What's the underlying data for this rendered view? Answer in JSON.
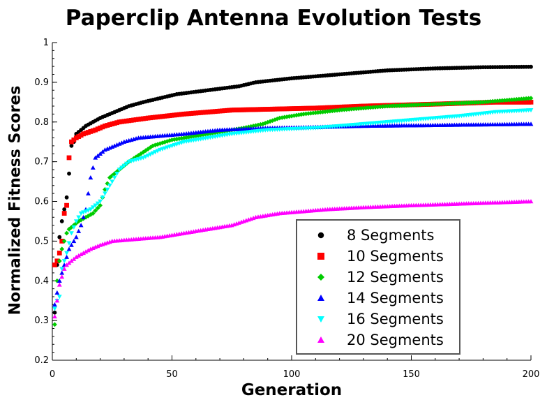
{
  "chart_data": {
    "type": "scatter",
    "title": "Paperclip Antenna Evolution Tests",
    "xlabel": "Generation",
    "ylabel": "Normalized Fitness Scores",
    "xlim": [
      0,
      200
    ],
    "ylim": [
      0.2,
      1
    ],
    "x_ticks": [
      "0",
      "50",
      "100",
      "150",
      "200"
    ],
    "y_ticks": [
      "0.2",
      "0.3",
      "0.4",
      "0.5",
      "0.6",
      "0.7",
      "0.8",
      "0.9",
      "1"
    ],
    "grid": false,
    "legend_position": "bottom-right",
    "series": [
      {
        "name": "8 Segments",
        "marker": "circle",
        "color": "#000000",
        "points": [
          [
            1,
            0.32
          ],
          [
            2,
            0.44
          ],
          [
            3,
            0.51
          ],
          [
            4,
            0.55
          ],
          [
            5,
            0.58
          ],
          [
            6,
            0.61
          ],
          [
            7,
            0.67
          ],
          [
            8,
            0.74
          ],
          [
            9,
            0.75
          ],
          [
            10,
            0.77
          ],
          [
            12,
            0.78
          ],
          [
            14,
            0.79
          ],
          [
            17,
            0.8
          ],
          [
            20,
            0.81
          ],
          [
            24,
            0.82
          ],
          [
            28,
            0.83
          ],
          [
            32,
            0.84
          ],
          [
            38,
            0.85
          ],
          [
            45,
            0.86
          ],
          [
            52,
            0.87
          ],
          [
            65,
            0.88
          ],
          [
            78,
            0.89
          ],
          [
            85,
            0.9
          ],
          [
            100,
            0.91
          ],
          [
            120,
            0.92
          ],
          [
            140,
            0.93
          ],
          [
            160,
            0.935
          ],
          [
            180,
            0.938
          ],
          [
            200,
            0.939
          ]
        ]
      },
      {
        "name": "10 Segments",
        "marker": "square",
        "color": "#ff0000",
        "points": [
          [
            1,
            0.44
          ],
          [
            2,
            0.45
          ],
          [
            3,
            0.47
          ],
          [
            4,
            0.5
          ],
          [
            5,
            0.57
          ],
          [
            6,
            0.59
          ],
          [
            7,
            0.71
          ],
          [
            8,
            0.75
          ],
          [
            10,
            0.76
          ],
          [
            13,
            0.77
          ],
          [
            18,
            0.78
          ],
          [
            22,
            0.79
          ],
          [
            28,
            0.8
          ],
          [
            40,
            0.81
          ],
          [
            55,
            0.82
          ],
          [
            75,
            0.83
          ],
          [
            110,
            0.835
          ],
          [
            130,
            0.84
          ],
          [
            160,
            0.845
          ],
          [
            185,
            0.85
          ],
          [
            200,
            0.85
          ]
        ]
      },
      {
        "name": "12 Segments",
        "marker": "diamond",
        "color": "#00cc00",
        "points": [
          [
            1,
            0.29
          ],
          [
            2,
            0.4
          ],
          [
            3,
            0.45
          ],
          [
            4,
            0.48
          ],
          [
            5,
            0.5
          ],
          [
            6,
            0.52
          ],
          [
            7,
            0.53
          ],
          [
            9,
            0.54
          ],
          [
            11,
            0.55
          ],
          [
            14,
            0.56
          ],
          [
            17,
            0.57
          ],
          [
            20,
            0.59
          ],
          [
            22,
            0.63
          ],
          [
            24,
            0.66
          ],
          [
            28,
            0.68
          ],
          [
            32,
            0.7
          ],
          [
            37,
            0.72
          ],
          [
            42,
            0.74
          ],
          [
            50,
            0.755
          ],
          [
            60,
            0.765
          ],
          [
            70,
            0.775
          ],
          [
            80,
            0.785
          ],
          [
            88,
            0.795
          ],
          [
            95,
            0.81
          ],
          [
            105,
            0.82
          ],
          [
            120,
            0.83
          ],
          [
            140,
            0.84
          ],
          [
            160,
            0.845
          ],
          [
            180,
            0.85
          ],
          [
            200,
            0.86
          ]
        ]
      },
      {
        "name": "14 Segments",
        "marker": "triangle-up",
        "color": "#0000ff",
        "points": [
          [
            1,
            0.34
          ],
          [
            3,
            0.4
          ],
          [
            4,
            0.42
          ],
          [
            5,
            0.44
          ],
          [
            6,
            0.46
          ],
          [
            7,
            0.48
          ],
          [
            8,
            0.49
          ],
          [
            10,
            0.51
          ],
          [
            12,
            0.54
          ],
          [
            14,
            0.58
          ],
          [
            16,
            0.66
          ],
          [
            18,
            0.71
          ],
          [
            20,
            0.72
          ],
          [
            22,
            0.73
          ],
          [
            26,
            0.74
          ],
          [
            30,
            0.75
          ],
          [
            36,
            0.76
          ],
          [
            45,
            0.765
          ],
          [
            55,
            0.77
          ],
          [
            70,
            0.78
          ],
          [
            90,
            0.785
          ],
          [
            110,
            0.787
          ],
          [
            130,
            0.79
          ],
          [
            160,
            0.792
          ],
          [
            200,
            0.795
          ]
        ]
      },
      {
        "name": "16 Segments",
        "marker": "triangle-down",
        "color": "#00ffff",
        "points": [
          [
            1,
            0.33
          ],
          [
            2,
            0.35
          ],
          [
            3,
            0.36
          ],
          [
            4,
            0.43
          ],
          [
            6,
            0.47
          ],
          [
            8,
            0.52
          ],
          [
            10,
            0.55
          ],
          [
            12,
            0.57
          ],
          [
            16,
            0.58
          ],
          [
            20,
            0.6
          ],
          [
            22,
            0.62
          ],
          [
            25,
            0.65
          ],
          [
            28,
            0.68
          ],
          [
            32,
            0.7
          ],
          [
            38,
            0.71
          ],
          [
            45,
            0.73
          ],
          [
            55,
            0.75
          ],
          [
            65,
            0.76
          ],
          [
            75,
            0.77
          ],
          [
            90,
            0.78
          ],
          [
            110,
            0.785
          ],
          [
            130,
            0.795
          ],
          [
            150,
            0.805
          ],
          [
            170,
            0.815
          ],
          [
            185,
            0.825
          ],
          [
            200,
            0.83
          ]
        ]
      },
      {
        "name": "20 Segments",
        "marker": "triangle-up",
        "color": "#ff00ff",
        "points": [
          [
            1,
            0.31
          ],
          [
            3,
            0.39
          ],
          [
            4,
            0.41
          ],
          [
            5,
            0.43
          ],
          [
            6,
            0.44
          ],
          [
            8,
            0.45
          ],
          [
            10,
            0.46
          ],
          [
            13,
            0.47
          ],
          [
            16,
            0.48
          ],
          [
            20,
            0.49
          ],
          [
            25,
            0.5
          ],
          [
            35,
            0.505
          ],
          [
            45,
            0.51
          ],
          [
            55,
            0.52
          ],
          [
            65,
            0.53
          ],
          [
            75,
            0.54
          ],
          [
            80,
            0.55
          ],
          [
            85,
            0.56
          ],
          [
            95,
            0.57
          ],
          [
            105,
            0.575
          ],
          [
            115,
            0.58
          ],
          [
            130,
            0.585
          ],
          [
            150,
            0.59
          ],
          [
            175,
            0.595
          ],
          [
            200,
            0.6
          ]
        ]
      }
    ]
  }
}
